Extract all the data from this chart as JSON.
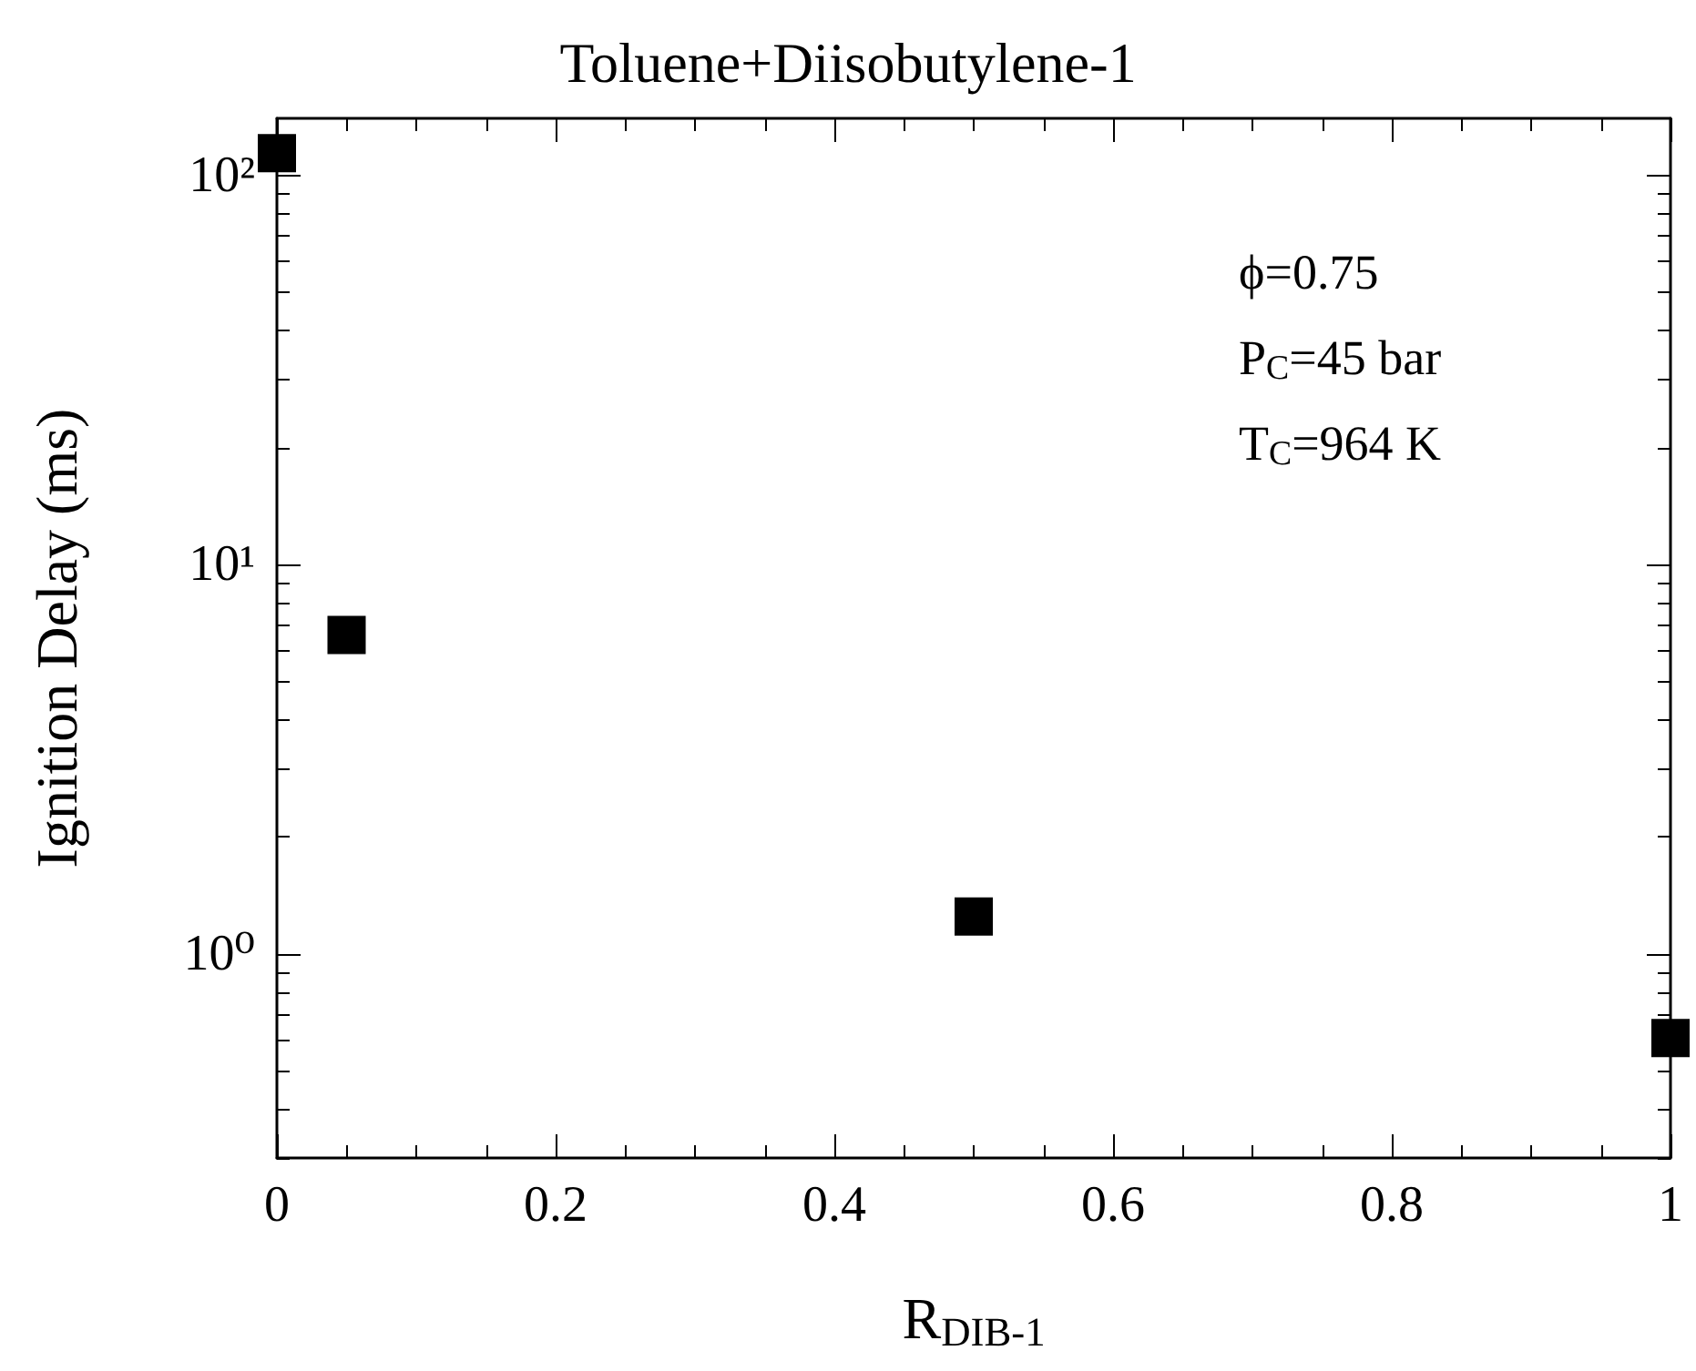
{
  "chart_data": {
    "type": "scatter",
    "title": "Toluene+Diisobutylene-1",
    "xlabel": "R$_{DIB-1}$",
    "ylabel": "Ignition Delay (ms)",
    "x": [
      0,
      0.05,
      0.5,
      1
    ],
    "series": [
      {
        "color": "#000000",
        "values": [
          114,
          6.6,
          1.25,
          0.61
        ]
      }
    ],
    "marker": "square",
    "log": "y",
    "grid": false,
    "xlim": [
      0,
      1
    ],
    "xticks": [
      0,
      0.2,
      0.4,
      0.6,
      0.8,
      1
    ],
    "ylim": [
      0.3,
      140
    ],
    "yticks": [
      {
        "value": 1,
        "label": "10⁰"
      },
      {
        "value": 10,
        "label": "10¹"
      },
      {
        "value": 100,
        "label": "10²"
      }
    ],
    "annotations": [
      "ϕ=0.75",
      "P$_{C}$=45 bar",
      "T$_{C}$=964 K"
    ]
  }
}
